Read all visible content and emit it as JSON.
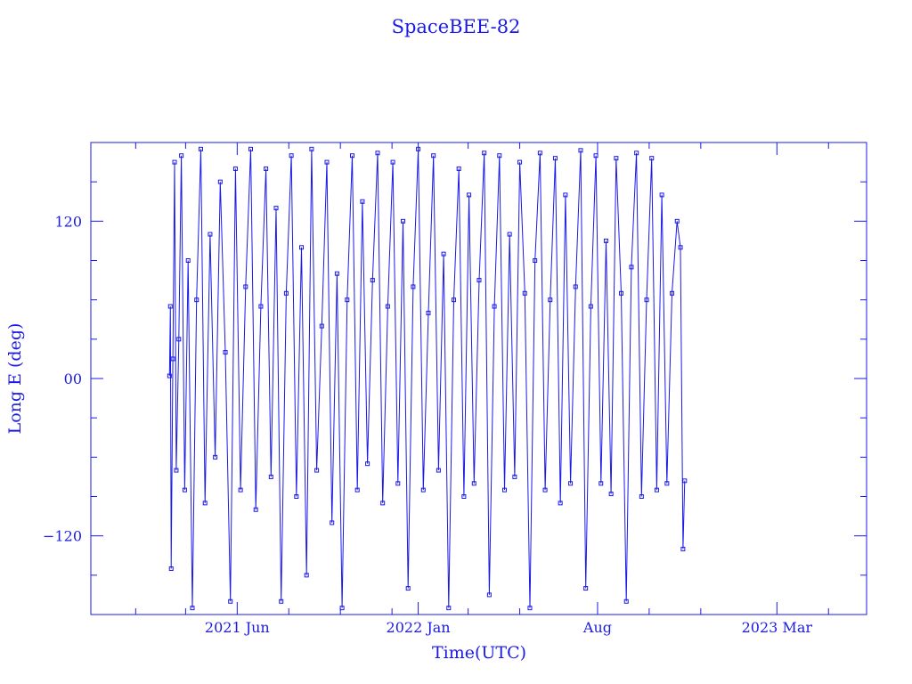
{
  "chart_data": {
    "type": "line",
    "title": "SpaceBEE-82",
    "xlabel": "Time(UTC)",
    "ylabel": "Long E (deg)",
    "ylim": [
      -180,
      180
    ],
    "xlim": [
      "2020-12-10",
      "2023-06-15"
    ],
    "y_ticks": [
      120,
      0,
      -120
    ],
    "y_tick_labels": [
      "120",
      "00",
      "−120"
    ],
    "x_ticks": [
      "2021-06-01",
      "2022-01-01",
      "2022-08-01",
      "2023-03-01"
    ],
    "x_tick_labels": [
      "2021 Jun",
      "2022 Jan",
      "Aug",
      "2023 Mar"
    ],
    "grid": false,
    "color": "#1a1ae6",
    "series": [
      {
        "x": [
          "2021-03-13",
          "2021-03-14",
          "2021-03-15",
          "2021-03-17",
          "2021-03-19",
          "2021-03-21",
          "2021-03-24",
          "2021-03-27",
          "2021-03-31",
          "2021-04-04",
          "2021-04-09",
          "2021-04-14",
          "2021-04-19",
          "2021-04-24",
          "2021-04-30",
          "2021-05-06",
          "2021-05-12",
          "2021-05-18",
          "2021-05-24",
          "2021-05-30",
          "2021-06-05",
          "2021-06-11",
          "2021-06-17",
          "2021-06-23",
          "2021-06-29",
          "2021-07-05",
          "2021-07-11",
          "2021-07-17",
          "2021-07-23",
          "2021-07-29",
          "2021-08-04",
          "2021-08-10",
          "2021-08-16",
          "2021-08-22",
          "2021-08-28",
          "2021-09-03",
          "2021-09-09",
          "2021-09-15",
          "2021-09-21",
          "2021-09-27",
          "2021-10-03",
          "2021-10-09",
          "2021-10-15",
          "2021-10-21",
          "2021-10-27",
          "2021-11-02",
          "2021-11-08",
          "2021-11-14",
          "2021-11-20",
          "2021-11-26",
          "2021-12-02",
          "2021-12-08",
          "2021-12-14",
          "2021-12-20",
          "2021-12-26",
          "2022-01-01",
          "2022-01-07",
          "2022-01-13",
          "2022-01-19",
          "2022-01-25",
          "2022-01-31",
          "2022-02-06",
          "2022-02-12",
          "2022-02-18",
          "2022-02-24",
          "2022-03-02",
          "2022-03-08",
          "2022-03-14",
          "2022-03-20",
          "2022-03-26",
          "2022-04-01",
          "2022-04-07",
          "2022-04-13",
          "2022-04-19",
          "2022-04-25",
          "2022-05-01",
          "2022-05-07",
          "2022-05-13",
          "2022-05-19",
          "2022-05-25",
          "2022-05-31",
          "2022-06-06",
          "2022-06-12",
          "2022-06-18",
          "2022-06-24",
          "2022-06-30",
          "2022-07-06",
          "2022-07-12",
          "2022-07-18",
          "2022-07-24",
          "2022-07-30",
          "2022-08-05",
          "2022-08-11",
          "2022-08-17",
          "2022-08-23",
          "2022-08-29",
          "2022-09-04",
          "2022-09-10",
          "2022-09-16",
          "2022-09-22",
          "2022-09-28",
          "2022-10-04",
          "2022-10-10",
          "2022-10-16",
          "2022-10-22",
          "2022-10-28",
          "2022-11-03",
          "2022-11-07",
          "2022-11-10",
          "2022-11-12"
        ],
        "y": [
          2,
          55,
          -145,
          15,
          165,
          -70,
          30,
          170,
          -85,
          90,
          -175,
          60,
          175,
          -95,
          110,
          -60,
          150,
          20,
          -170,
          160,
          -85,
          70,
          175,
          -100,
          55,
          160,
          -75,
          130,
          -170,
          65,
          170,
          -90,
          100,
          -150,
          175,
          -70,
          40,
          165,
          -110,
          80,
          -175,
          60,
          170,
          -85,
          135,
          -65,
          75,
          172,
          -95,
          55,
          165,
          -80,
          120,
          -160,
          70,
          175,
          -85,
          50,
          170,
          -70,
          95,
          -175,
          60,
          160,
          -90,
          140,
          -80,
          75,
          172,
          -165,
          55,
          170,
          -85,
          110,
          -75,
          165,
          65,
          -175,
          90,
          172,
          -85,
          60,
          168,
          -95,
          140,
          -80,
          70,
          174,
          -160,
          55,
          170,
          -80,
          105,
          -88,
          168,
          65,
          -170,
          85,
          172,
          -90,
          60,
          168,
          -85,
          140,
          -80,
          65,
          120,
          100,
          -130,
          -78
        ]
      }
    ]
  }
}
